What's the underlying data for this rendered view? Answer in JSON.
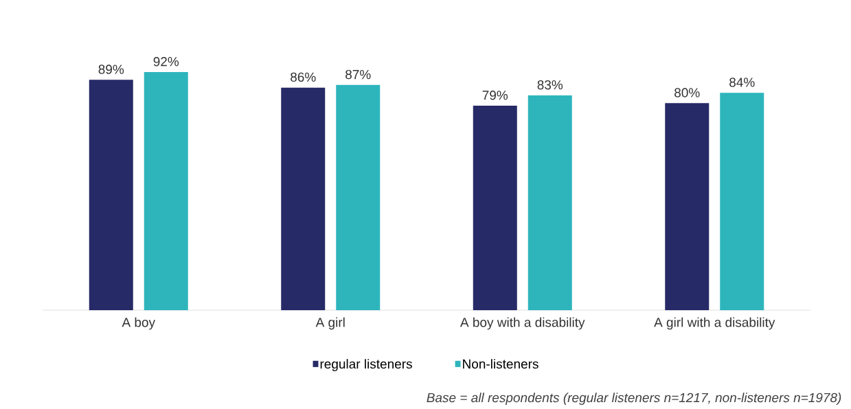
{
  "chart_data": {
    "type": "bar",
    "categories": [
      "A boy",
      "A girl",
      "A boy with a disability",
      "A girl with a disability"
    ],
    "series": [
      {
        "name": "regular listeners",
        "color": "#262a66",
        "values": [
          89,
          86,
          79,
          80
        ],
        "value_labels": [
          "89%",
          "86%",
          "79%",
          "80%"
        ]
      },
      {
        "name": "Non-listeners",
        "color": "#2eb5bc",
        "values": [
          92,
          87,
          83,
          84
        ],
        "value_labels": [
          "92%",
          "87%",
          "83%",
          "84%"
        ]
      }
    ],
    "legend": "bottom",
    "annotations": [
      "Base = all respondents (regular listeners n=1217, non-listeners n=1978)"
    ]
  }
}
